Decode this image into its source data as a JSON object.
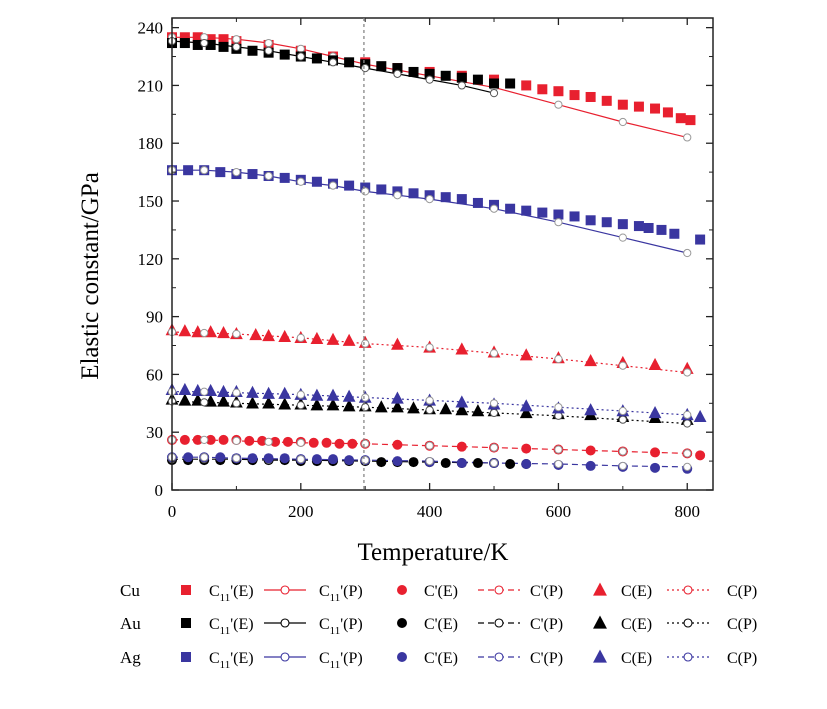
{
  "chart_data": {
    "type": "scatter",
    "title": "",
    "xlabel": "Temperature/K",
    "ylabel": "Elastic constant/GPa",
    "xlim": [
      0,
      840
    ],
    "ylim": [
      0,
      245
    ],
    "xticks": [
      0,
      200,
      400,
      600,
      800
    ],
    "yticks": [
      0,
      30,
      60,
      90,
      120,
      150,
      180,
      210,
      240
    ],
    "xtick_labels": [
      "0",
      "200",
      "400",
      "600",
      "800"
    ],
    "ytick_labels": [
      "0",
      "30",
      "60",
      "90",
      "120",
      "150",
      "180",
      "210",
      "240"
    ],
    "reference_line": {
      "x": 298,
      "style": "dotted"
    },
    "grid": false,
    "legend_position": "bottom",
    "legend": {
      "rows": [
        {
          "metal": "Cu",
          "color": "#e8202f"
        },
        {
          "metal": "Au",
          "color": "#000000"
        },
        {
          "metal": "Ag",
          "color": "#3a36a0"
        }
      ],
      "entries": [
        {
          "base": "C",
          "sub": "11",
          "suffix": "'(E)",
          "kind": "marker",
          "marker": "square",
          "filled": true
        },
        {
          "base": "C",
          "sub": "11",
          "suffix": "'(P)",
          "kind": "line",
          "marker": "circle",
          "filled": false,
          "dash": "solid"
        },
        {
          "base": "C",
          "sub": "",
          "suffix": "'(E)",
          "kind": "marker",
          "marker": "circle",
          "filled": true
        },
        {
          "base": "C",
          "sub": "",
          "suffix": "'(P)",
          "kind": "line",
          "marker": "circle",
          "filled": false,
          "dash": "dashed"
        },
        {
          "base": "C",
          "sub": "",
          "suffix": "(E)",
          "kind": "marker",
          "marker": "triangle",
          "filled": true
        },
        {
          "base": "C",
          "sub": "",
          "suffix": "(P)",
          "kind": "line",
          "marker": "circle",
          "filled": false,
          "dash": "dashdot"
        }
      ]
    },
    "series": [
      {
        "metal": "Cu",
        "quantity": "C11'(E)",
        "color": "#e8202f",
        "marker": "square",
        "filled": true,
        "line": "none",
        "x": [
          0,
          20,
          40,
          60,
          80,
          100,
          150,
          200,
          250,
          300,
          350,
          400,
          450,
          500,
          550,
          575,
          600,
          625,
          650,
          675,
          700,
          725,
          750,
          770,
          790,
          805
        ],
        "y": [
          235,
          235,
          235,
          234,
          234,
          233,
          231,
          228,
          225,
          222,
          219,
          217,
          215,
          213,
          210,
          208,
          207,
          205,
          204,
          202,
          200,
          199,
          198,
          196,
          193,
          192
        ]
      },
      {
        "metal": "Cu",
        "quantity": "C11'(P)",
        "color": "#e8202f",
        "marker": "circle",
        "filled": false,
        "line": "solid",
        "x": [
          0,
          50,
          100,
          150,
          200,
          250,
          300,
          350,
          400,
          500,
          600,
          700,
          800
        ],
        "y": [
          235,
          235,
          234,
          232,
          229,
          225,
          221,
          218,
          215,
          209,
          200,
          191,
          183
        ]
      },
      {
        "metal": "Cu",
        "quantity": "C'(E)",
        "color": "#e8202f",
        "marker": "circle",
        "filled": true,
        "line": "none",
        "x": [
          0,
          20,
          40,
          60,
          80,
          100,
          120,
          140,
          160,
          180,
          200,
          220,
          240,
          260,
          280,
          300,
          350,
          400,
          450,
          500,
          550,
          600,
          650,
          700,
          750,
          800,
          820
        ],
        "y": [
          26,
          26,
          26,
          26,
          26,
          26,
          25.5,
          25.5,
          25,
          25,
          25,
          24.5,
          24.5,
          24,
          24,
          24,
          23.5,
          23,
          22.5,
          22,
          21.5,
          21,
          20.5,
          20,
          19.5,
          19,
          18
        ]
      },
      {
        "metal": "Cu",
        "quantity": "C'(P)",
        "color": "#e8202f",
        "marker": "circle",
        "filled": false,
        "line": "dashed",
        "x": [
          0,
          50,
          100,
          150,
          200,
          300,
          400,
          500,
          600,
          700,
          800
        ],
        "y": [
          26,
          26,
          25.5,
          25,
          24.5,
          24,
          23,
          22,
          21,
          20,
          19
        ]
      },
      {
        "metal": "Cu",
        "quantity": "C(E)",
        "color": "#e8202f",
        "marker": "triangle",
        "filled": true,
        "line": "none",
        "x": [
          0,
          20,
          40,
          60,
          80,
          100,
          130,
          150,
          175,
          200,
          225,
          250,
          275,
          300,
          350,
          400,
          450,
          500,
          550,
          600,
          650,
          700,
          750,
          800
        ],
        "y": [
          83,
          82.5,
          82,
          82,
          81.5,
          81,
          80.5,
          80,
          79.5,
          79,
          78.5,
          78,
          77.5,
          76.5,
          75.5,
          74,
          73,
          71.5,
          70,
          68.5,
          67,
          66,
          65,
          63
        ]
      },
      {
        "metal": "Cu",
        "quantity": "C(P)",
        "color": "#e8202f",
        "marker": "circle",
        "filled": false,
        "line": "dashdot",
        "x": [
          0,
          50,
          100,
          200,
          300,
          400,
          500,
          600,
          700,
          800
        ],
        "y": [
          82,
          81.5,
          81,
          79,
          76,
          74,
          71,
          68,
          64.5,
          61
        ]
      },
      {
        "metal": "Au",
        "quantity": "C11'(E)",
        "color": "#000000",
        "marker": "square",
        "filled": true,
        "line": "none",
        "x": [
          0,
          20,
          40,
          60,
          80,
          100,
          125,
          150,
          175,
          200,
          225,
          250,
          275,
          300,
          325,
          350,
          375,
          400,
          425,
          450,
          475,
          500,
          525
        ],
        "y": [
          232,
          232,
          231,
          231,
          230,
          229,
          228,
          227,
          226,
          225,
          224,
          223,
          222,
          221,
          220,
          219,
          217,
          216,
          215,
          214,
          213,
          211,
          211
        ]
      },
      {
        "metal": "Au",
        "quantity": "C11'(P)",
        "color": "#000000",
        "marker": "circle",
        "filled": false,
        "line": "solid",
        "x": [
          0,
          50,
          100,
          150,
          200,
          250,
          300,
          350,
          400,
          450,
          500
        ],
        "y": [
          233,
          232,
          230,
          228,
          225,
          222,
          219,
          216,
          213,
          210,
          206
        ]
      },
      {
        "metal": "Au",
        "quantity": "C'(E)",
        "color": "#000000",
        "marker": "circle",
        "filled": true,
        "line": "none",
        "x": [
          0,
          25,
          50,
          75,
          100,
          125,
          150,
          175,
          200,
          225,
          250,
          275,
          300,
          325,
          350,
          375,
          400,
          425,
          450,
          475,
          500,
          525,
          550
        ],
        "y": [
          15.5,
          15.5,
          15.5,
          15.5,
          15.5,
          15.5,
          15.5,
          15.5,
          15,
          15,
          15,
          15,
          15,
          14.5,
          14.5,
          14.5,
          14.5,
          14,
          14,
          14,
          14,
          13.5,
          13.5
        ]
      },
      {
        "metal": "Au",
        "quantity": "C'(P)",
        "color": "#000000",
        "marker": "circle",
        "filled": false,
        "line": "dashed",
        "x": [
          0,
          50,
          100,
          150,
          200,
          300,
          400,
          500
        ],
        "y": [
          16,
          16,
          16,
          15.5,
          15.5,
          15,
          14.5,
          14
        ]
      },
      {
        "metal": "Au",
        "quantity": "C(E)",
        "color": "#000000",
        "marker": "triangle",
        "filled": true,
        "line": "none",
        "x": [
          0,
          20,
          40,
          60,
          80,
          100,
          125,
          150,
          175,
          200,
          225,
          250,
          275,
          300,
          325,
          350,
          375,
          400,
          425,
          450,
          475,
          500,
          550,
          600,
          650,
          700,
          750,
          800
        ],
        "y": [
          47,
          46.5,
          46.5,
          46,
          46,
          45.5,
          45,
          45,
          44.5,
          44.5,
          44,
          44,
          43.5,
          43.5,
          43,
          43,
          42.5,
          42,
          42,
          41.5,
          41,
          41,
          40,
          39.5,
          39,
          38,
          37.5,
          36.5
        ]
      },
      {
        "metal": "Au",
        "quantity": "C(P)",
        "color": "#000000",
        "marker": "circle",
        "filled": false,
        "line": "dashdot",
        "x": [
          0,
          50,
          100,
          200,
          300,
          400,
          500,
          600,
          700,
          800
        ],
        "y": [
          46,
          45.5,
          45,
          44,
          43,
          41.5,
          40,
          38.5,
          36.5,
          34.5
        ]
      },
      {
        "metal": "Ag",
        "quantity": "C11'(E)",
        "color": "#3a36a0",
        "marker": "square",
        "filled": true,
        "line": "none",
        "x": [
          0,
          25,
          50,
          75,
          100,
          125,
          150,
          175,
          200,
          225,
          250,
          275,
          300,
          325,
          350,
          375,
          400,
          425,
          450,
          475,
          500,
          525,
          550,
          575,
          600,
          625,
          650,
          675,
          700,
          725,
          740,
          760,
          780,
          820
        ],
        "y": [
          166,
          166,
          166,
          165,
          164,
          164,
          163,
          162,
          161,
          160,
          159,
          158,
          157,
          156,
          155,
          154,
          153,
          152,
          151,
          149,
          148,
          146,
          145,
          144,
          143,
          142,
          140,
          139,
          138,
          137,
          136,
          135,
          133,
          130
        ]
      },
      {
        "metal": "Ag",
        "quantity": "C11'(P)",
        "color": "#3a36a0",
        "marker": "circle",
        "filled": false,
        "line": "solid",
        "x": [
          0,
          50,
          100,
          150,
          200,
          250,
          300,
          350,
          400,
          500,
          600,
          700,
          800
        ],
        "y": [
          166,
          166,
          165,
          163,
          160,
          158,
          155,
          153,
          151,
          146,
          139,
          131,
          123
        ]
      },
      {
        "metal": "Ag",
        "quantity": "C'(E)",
        "color": "#3a36a0",
        "marker": "circle",
        "filled": true,
        "line": "none",
        "x": [
          0,
          25,
          50,
          75,
          100,
          125,
          150,
          175,
          200,
          225,
          250,
          275,
          300,
          350,
          400,
          450,
          500,
          550,
          600,
          650,
          700,
          750,
          800
        ],
        "y": [
          17,
          17,
          17,
          17,
          16.5,
          16.5,
          16.5,
          16.5,
          16,
          16,
          16,
          15.5,
          15.5,
          15,
          14.5,
          14,
          14,
          13.5,
          13,
          12.5,
          12,
          11.5,
          11
        ]
      },
      {
        "metal": "Ag",
        "quantity": "C'(P)",
        "color": "#3a36a0",
        "marker": "circle",
        "filled": false,
        "line": "dashed",
        "x": [
          0,
          50,
          100,
          200,
          300,
          400,
          500,
          600,
          700,
          800
        ],
        "y": [
          17,
          17,
          16.5,
          16,
          15.5,
          15,
          14,
          13.5,
          12.5,
          12
        ]
      },
      {
        "metal": "Ag",
        "quantity": "C(E)",
        "color": "#3a36a0",
        "marker": "triangle",
        "filled": true,
        "line": "none",
        "x": [
          0,
          20,
          40,
          60,
          80,
          100,
          125,
          150,
          175,
          200,
          225,
          250,
          275,
          300,
          350,
          400,
          450,
          500,
          550,
          600,
          650,
          700,
          750,
          800,
          820
        ],
        "y": [
          52,
          52,
          51.5,
          51.5,
          51,
          51,
          50.5,
          50,
          50,
          49.5,
          49,
          49,
          48.5,
          48,
          47.5,
          46.5,
          45.5,
          44.5,
          43.5,
          42.5,
          41.5,
          41,
          40,
          39,
          38
        ]
      },
      {
        "metal": "Ag",
        "quantity": "C(P)",
        "color": "#3a36a0",
        "marker": "circle",
        "filled": false,
        "line": "dashdot",
        "x": [
          0,
          50,
          100,
          200,
          300,
          400,
          500,
          600,
          700,
          800
        ],
        "y": [
          51,
          51,
          50.5,
          49.5,
          48,
          46.5,
          45,
          43,
          41,
          39
        ]
      }
    ]
  }
}
